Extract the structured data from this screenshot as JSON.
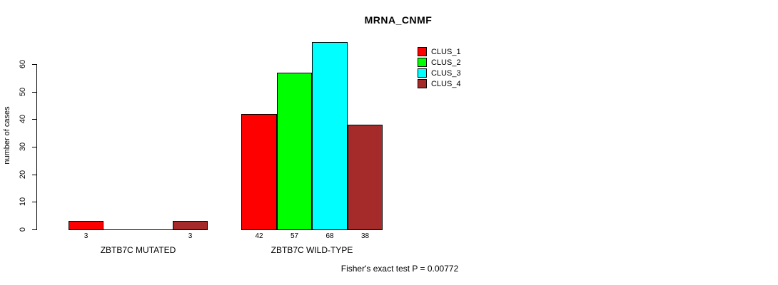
{
  "title": "MRNA_CNMF",
  "chart_data": {
    "type": "bar",
    "title": "MRNA_CNMF",
    "xlabel": "",
    "ylabel": "number of cases",
    "ylim": [
      0,
      60
    ],
    "yticks": [
      0,
      10,
      20,
      30,
      40,
      50,
      60
    ],
    "grid": false,
    "legend_position": "top-right",
    "categories": [
      "ZBTB7C MUTATED",
      "ZBTB7C WILD-TYPE"
    ],
    "series": [
      {
        "name": "CLUS_1",
        "color": "#FF0000",
        "values": [
          3,
          42
        ]
      },
      {
        "name": "CLUS_2",
        "color": "#00FF00",
        "values": [
          0,
          57
        ]
      },
      {
        "name": "CLUS_3",
        "color": "#00FFFF",
        "values": [
          0,
          68
        ]
      },
      {
        "name": "CLUS_4",
        "color": "#A52A2A",
        "values": [
          3,
          38
        ]
      }
    ],
    "bar_value_labels": [
      [
        "3",
        "",
        "",
        "3"
      ],
      [
        "42",
        "57",
        "68",
        "38"
      ]
    ],
    "annotation": "Fisher's exact test P = 0.00772"
  },
  "colors": {
    "background": "#FFFFFF",
    "axis": "#000000",
    "text": "#000000"
  }
}
